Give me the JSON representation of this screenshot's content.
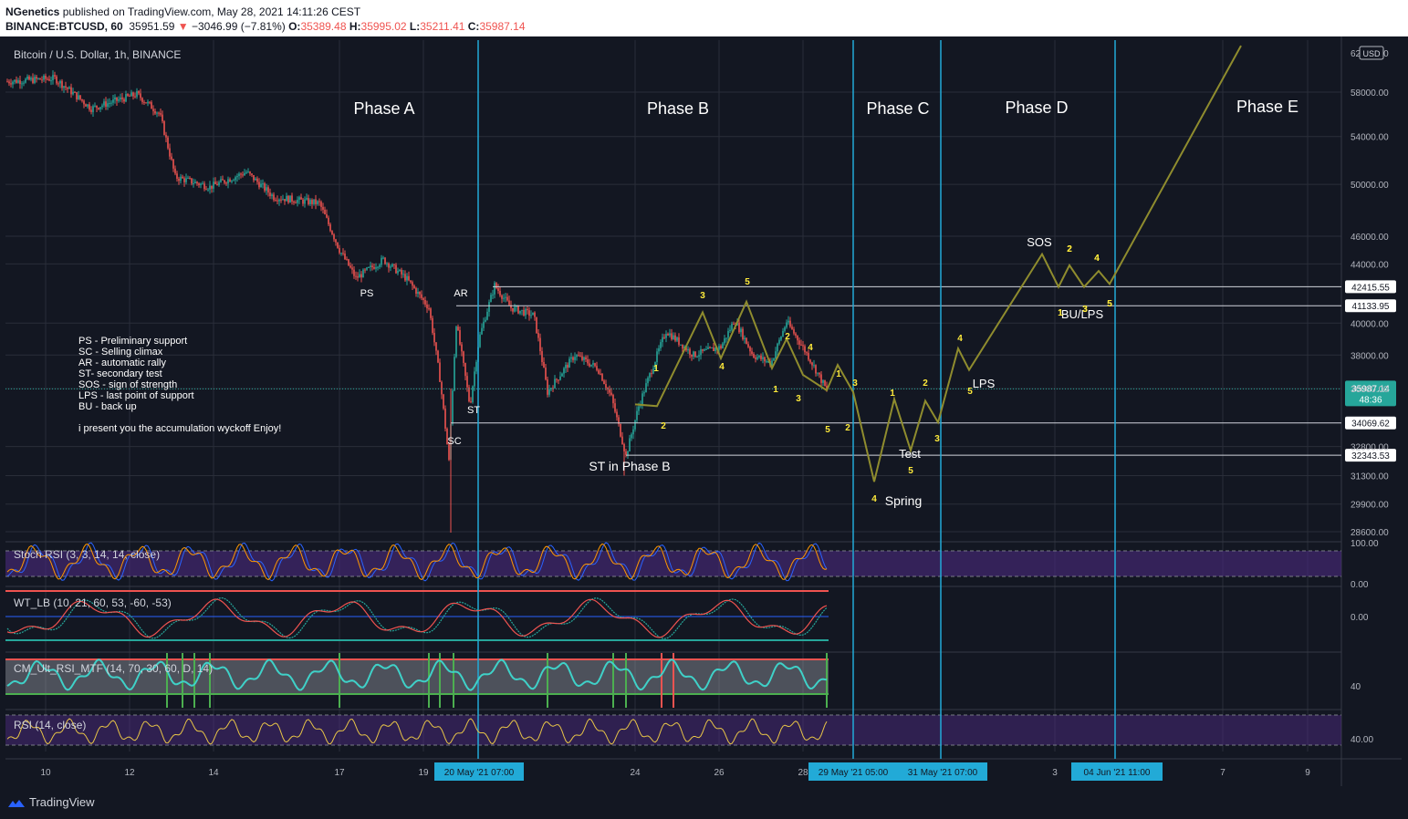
{
  "header": {
    "publisher_name": "NGenetics",
    "publisher_rest": " published on TradingView.com, May 28, 2021 14:11:26 CEST",
    "symbol": "BINANCE:BTCUSD, 60",
    "last": "35951.59",
    "arrow": "▼",
    "change": "−3046.99 (−7.81%)",
    "o_label": "O:",
    "o_val": "35389.48",
    "h_label": "H:",
    "h_val": "35995.02",
    "l_label": "L:",
    "l_val": "35211.41",
    "c_label": "C:",
    "c_val": "35987.14"
  },
  "chart_data": {
    "type": "line",
    "title": "Bitcoin / U.S. Dollar, 1h, BINANCE",
    "currency": "USD",
    "x_ticks": [
      "10",
      "12",
      "14",
      "17",
      "19",
      "24",
      "26",
      "28",
      "3",
      "7",
      "9"
    ],
    "x_highlight_labels": [
      "20 May '21   07:00",
      "29 May '21   05:00",
      "31 May '21   07:00",
      "04 Jun '21   11:00"
    ],
    "y_ticks": [
      58000,
      54000,
      50000,
      46000,
      44000,
      40000,
      38000,
      36000,
      32800,
      31300,
      29900,
      28600
    ],
    "y_tick_labels": [
      "58000.00",
      "54000.00",
      "50000.00",
      "46000.00",
      "44000.00",
      "40000.00",
      "38000.00",
      "36000.00",
      "32800.00",
      "31300.00",
      "29900.00",
      "28600.00"
    ],
    "ylim": [
      28000,
      62000
    ],
    "top_partial_label": "62000.00",
    "price_lines": [
      {
        "value": 42415.55,
        "label": "42415.55"
      },
      {
        "value": 41133.95,
        "label": "41133.95"
      },
      {
        "value": 34069.62,
        "label": "34069.62"
      },
      {
        "value": 32343.53,
        "label": "32343.53"
      }
    ],
    "last_price": {
      "value": 35987.14,
      "label": "35987.14",
      "countdown": "48:36"
    },
    "phases": [
      "Phase A",
      "Phase B",
      "Phase C",
      "Phase D",
      "Phase E"
    ],
    "annotations": [
      "PS",
      "AR",
      "ST",
      "SC",
      "ST in Phase B",
      "Spring",
      "Test",
      "LPS",
      "SOS",
      "BU/LPS"
    ],
    "wave_numbers": [
      "1",
      "2",
      "3",
      "4",
      "5",
      "1",
      "2",
      "3",
      "4",
      "5",
      "1",
      "2",
      "3",
      "4",
      "5",
      "1",
      "2",
      "3",
      "4",
      "5",
      "1",
      "2",
      "3",
      "4",
      "5",
      "1",
      "2",
      "3",
      "4",
      "5"
    ],
    "legend_lines": [
      "PS - Preliminary support",
      "SC - Selling climax",
      "AR - automatic rally",
      "ST- secondary test",
      "SOS - sign of strength",
      "LPS - last point of support",
      "BU - back up",
      "",
      "i present you the accumulation wyckoff  Enjoy!"
    ],
    "indicators": [
      {
        "name": "Stoch RSI (3, 3, 14, 14, close)",
        "ticks": [
          "100.00",
          "0.00"
        ]
      },
      {
        "name": "WT_LB (10, 21, 60, 53, -60, -53)",
        "ticks": [
          "0.00"
        ]
      },
      {
        "name": "CM_Ult_RSI_MTF (14, 70, 30, 60, D, 14)",
        "ticks": [
          "40"
        ]
      },
      {
        "name": "RSI (14, close)",
        "ticks": [
          "40.00"
        ]
      }
    ],
    "projection": {
      "color": "#8f8c2e"
    },
    "colors": {
      "background": "#131722",
      "up": "#26a69a",
      "down": "#ef5350",
      "vline": "#22aad7",
      "wave": "#ffeb3b",
      "stoch_fill": "#4b2a7e"
    }
  },
  "footer": {
    "brand": "TradingView"
  }
}
